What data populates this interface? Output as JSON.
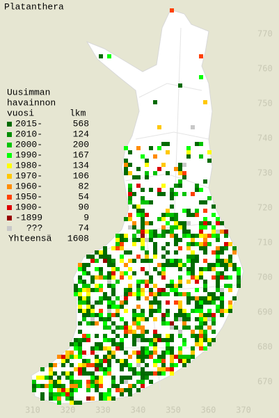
{
  "title": "Platanthera",
  "legend": {
    "header": [
      "Uusimman",
      "havainnon",
      "vuosi"
    ],
    "count_header": "lkm",
    "rows": [
      {
        "label": "2015-",
        "count": 568,
        "color": "#006a00"
      },
      {
        "label": "2010-",
        "count": 124,
        "color": "#008c00"
      },
      {
        "label": "2000-",
        "count": 200,
        "color": "#00c400"
      },
      {
        "label": "1990-",
        "count": 167,
        "color": "#00ff00"
      },
      {
        "label": "1980-",
        "count": 134,
        "color": "#ffff00"
      },
      {
        "label": "1970-",
        "count": 106,
        "color": "#ffc800"
      },
      {
        "label": "1960-",
        "count": 82,
        "color": "#ff8c00"
      },
      {
        "label": "1950-",
        "count": 54,
        "color": "#ff4000"
      },
      {
        "label": "1900-",
        "count": 90,
        "color": "#dc0000"
      },
      {
        "label": "-1899",
        "count": 9,
        "color": "#960000"
      },
      {
        "label": "???",
        "count": 74,
        "color": "#c8c8c8"
      }
    ],
    "total_label": "Yhteensä",
    "total": 1608
  },
  "x_labels": [
    310,
    320,
    330,
    340,
    350,
    360,
    370
  ],
  "y_labels": [
    670,
    680,
    690,
    700,
    710,
    720,
    730,
    740,
    750,
    760,
    770
  ]
}
